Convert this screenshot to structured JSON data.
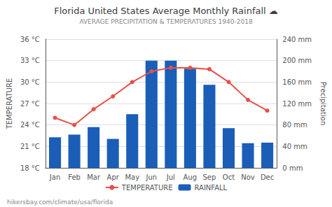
{
  "chart_data": {
    "type": "bar",
    "title": "Florida United States Average Monthly Rainfall ☁",
    "subtitle": "AVERAGE PRECIPITATION & TEMPERATURES 1940-2018",
    "ylabel": "TEMPERATURE",
    "y2label": "Precipitation",
    "annotations": [
      "hikersbay.com/climate/usa/florida"
    ],
    "categories": [
      "Jan",
      "Feb",
      "Mar",
      "Apr",
      "May",
      "Jun",
      "Jul",
      "Aug",
      "Sep",
      "Oct",
      "Nov",
      "Dec"
    ],
    "series": [
      {
        "name": "TEMPERATURE",
        "type": "line",
        "color": "#e8504a",
        "marker": "circle",
        "values": [
          25.0,
          24.0,
          26.2,
          28.0,
          30.0,
          31.5,
          32.0,
          32.0,
          31.8,
          30.0,
          27.5,
          26.0
        ]
      },
      {
        "name": "RAINFALL",
        "type": "bar",
        "color": "#1a5eb8",
        "axis": "y2",
        "values": [
          57,
          62,
          76,
          54,
          100,
          200,
          200,
          185,
          155,
          74,
          46,
          47
        ]
      }
    ],
    "ylim": [
      18,
      36
    ],
    "yticks": [
      {
        "value": 18,
        "label": "18 °C"
      },
      {
        "value": 21,
        "label": "21 °C"
      },
      {
        "value": 24,
        "label": "24 °C"
      },
      {
        "value": 27,
        "label": "27 °C"
      },
      {
        "value": 30,
        "label": "30 °C"
      },
      {
        "value": 33,
        "label": "33 °C"
      },
      {
        "value": 36,
        "label": "36 °C"
      }
    ],
    "y2lim": [
      0,
      240
    ],
    "y2ticks": [
      {
        "value": 0,
        "label": "0 mm"
      },
      {
        "value": 40,
        "label": "40 mm"
      },
      {
        "value": 80,
        "label": "80 mm"
      },
      {
        "value": 120,
        "label": "120 mm"
      },
      {
        "value": 160,
        "label": "160 mm"
      },
      {
        "value": 200,
        "label": "200 mm"
      },
      {
        "value": 240,
        "label": "240 mm"
      }
    ],
    "grid": true,
    "legend": "bottom"
  }
}
